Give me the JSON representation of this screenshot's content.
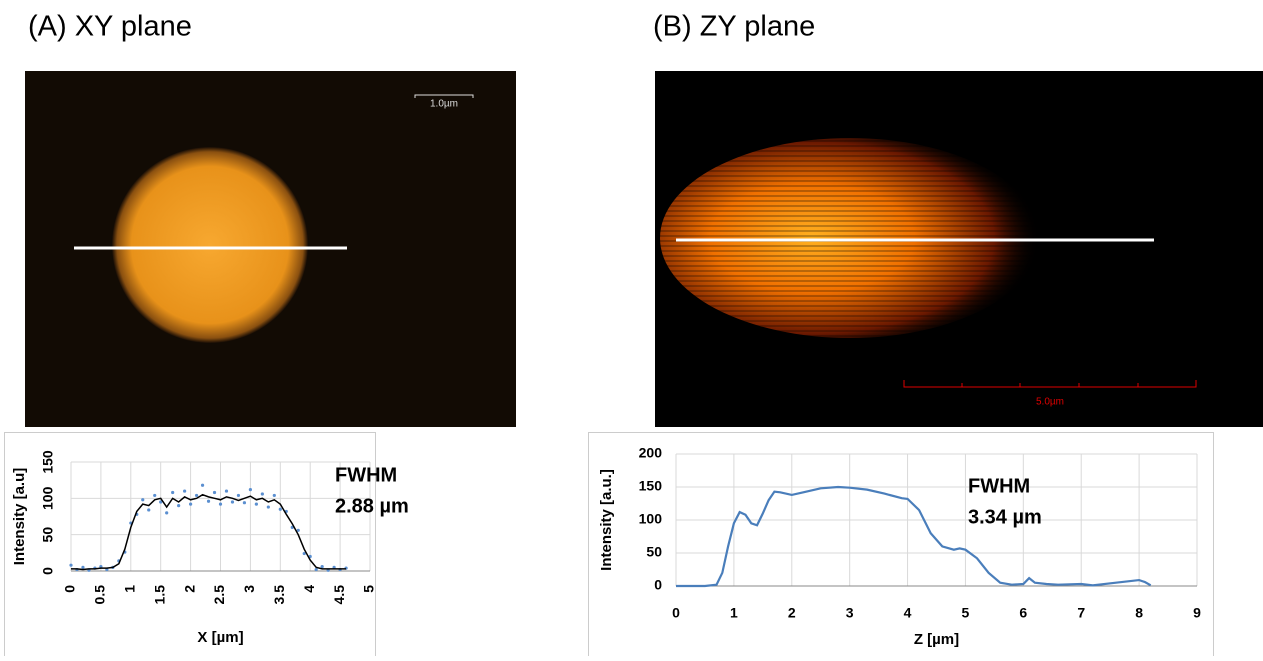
{
  "panels": [
    {
      "title": "(A) XY plane",
      "scale_bar": "1.0µm"
    },
    {
      "title": "(B) ZY plane",
      "scale_bar": "5.0µm"
    }
  ],
  "chart_data": [
    {
      "type": "line",
      "xlabel": "X [µm]",
      "ylabel": "Intensity [a.u]",
      "annotation": [
        "FWHM",
        "2.88 µm"
      ],
      "xlim": [
        0,
        5
      ],
      "xticks": [
        0,
        0.5,
        1,
        1.5,
        2,
        2.5,
        3,
        3.5,
        4,
        4.5,
        5
      ],
      "ylim": [
        0,
        150
      ],
      "yticks": [
        0,
        50,
        100,
        150
      ],
      "grid": true,
      "x": [
        0,
        0.1,
        0.2,
        0.3,
        0.4,
        0.5,
        0.6,
        0.7,
        0.8,
        0.9,
        1.0,
        1.1,
        1.2,
        1.3,
        1.4,
        1.5,
        1.6,
        1.7,
        1.8,
        1.9,
        2.0,
        2.1,
        2.2,
        2.3,
        2.4,
        2.5,
        2.6,
        2.7,
        2.8,
        2.9,
        3.0,
        3.1,
        3.2,
        3.3,
        3.4,
        3.5,
        3.6,
        3.7,
        3.8,
        3.9,
        4.0,
        4.1,
        4.2,
        4.3,
        4.4,
        4.5,
        4.6
      ],
      "series": [
        {
          "style": "dots",
          "color": "#5b8fd0",
          "values": [
            8,
            2,
            5,
            1,
            4,
            6,
            2,
            5,
            14,
            26,
            66,
            78,
            98,
            84,
            104,
            95,
            80,
            108,
            90,
            110,
            92,
            104,
            118,
            96,
            108,
            92,
            110,
            95,
            104,
            94,
            112,
            92,
            106,
            88,
            104,
            85,
            82,
            60,
            56,
            24,
            20,
            2,
            6,
            1,
            5,
            2,
            4
          ]
        },
        {
          "style": "line",
          "color": "#000000",
          "values": [
            3,
            3,
            2,
            3,
            3,
            4,
            4,
            5,
            10,
            30,
            60,
            82,
            92,
            90,
            98,
            100,
            88,
            100,
            95,
            102,
            98,
            100,
            105,
            102,
            100,
            98,
            102,
            100,
            97,
            100,
            103,
            98,
            100,
            95,
            98,
            92,
            78,
            65,
            50,
            30,
            15,
            5,
            3,
            3,
            3,
            3,
            3
          ]
        }
      ]
    },
    {
      "type": "line",
      "xlabel": "Z [µm]",
      "ylabel": "Intensity [a.u.]",
      "annotation": [
        "FWHM",
        "3.34 µm"
      ],
      "xlim": [
        0,
        9
      ],
      "xticks": [
        0,
        1,
        2,
        3,
        4,
        5,
        6,
        7,
        8,
        9
      ],
      "ylim": [
        0,
        200
      ],
      "yticks": [
        0,
        50,
        100,
        150,
        200
      ],
      "grid": true,
      "x": [
        0,
        0.5,
        0.7,
        0.8,
        0.9,
        1.0,
        1.1,
        1.2,
        1.3,
        1.4,
        1.5,
        1.6,
        1.7,
        1.8,
        2.0,
        2.2,
        2.5,
        2.8,
        3.0,
        3.3,
        3.6,
        3.9,
        4.0,
        4.2,
        4.4,
        4.6,
        4.8,
        4.9,
        5.0,
        5.2,
        5.4,
        5.6,
        5.8,
        6.0,
        6.1,
        6.2,
        6.4,
        6.6,
        7.0,
        7.2,
        7.6,
        8.0,
        8.1,
        8.2
      ],
      "series": [
        {
          "style": "line",
          "color": "#4a7ebb",
          "values": [
            0,
            0,
            2,
            20,
            60,
            95,
            112,
            108,
            95,
            92,
            110,
            130,
            143,
            142,
            138,
            142,
            148,
            150,
            149,
            146,
            140,
            133,
            132,
            115,
            80,
            60,
            55,
            57,
            55,
            42,
            20,
            5,
            2,
            3,
            12,
            5,
            3,
            2,
            3,
            1,
            5,
            9,
            6,
            1
          ]
        }
      ]
    }
  ]
}
